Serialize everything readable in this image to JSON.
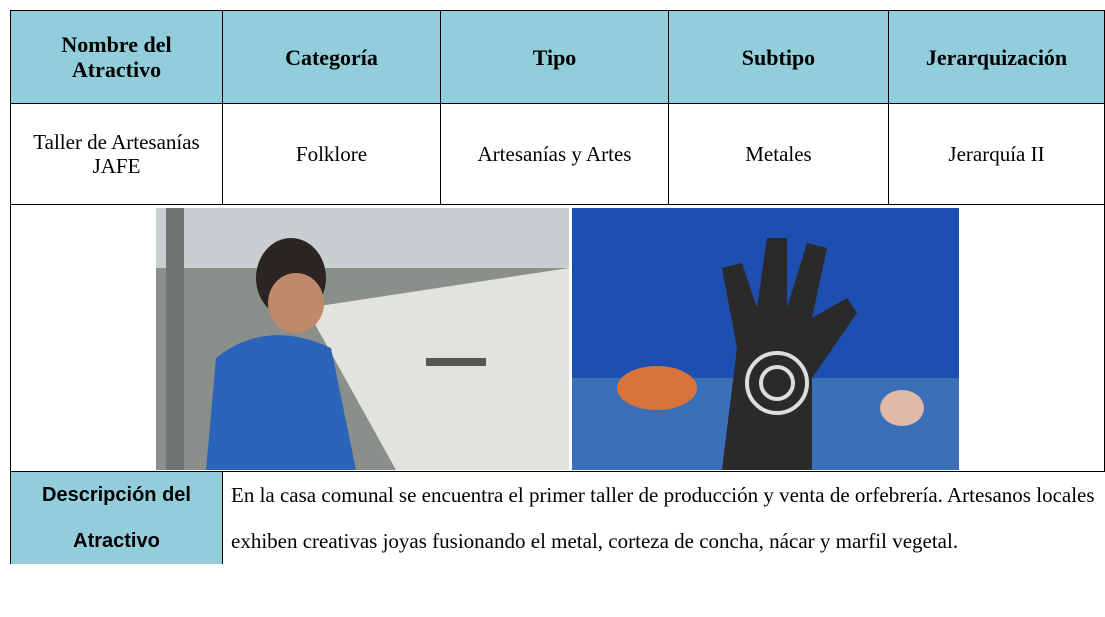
{
  "table": {
    "headers": [
      "Nombre del Atractivo",
      "Categoría",
      "Tipo",
      "Subtipo",
      "Jerarquización"
    ],
    "rows": [
      [
        "Taller de Artesanías JAFE",
        "Folklore",
        "Artesanías y Artes",
        "Metales",
        "Jerarquía II"
      ]
    ]
  },
  "description": {
    "label": "Descripción del Atractivo",
    "text": "En la casa comunal se encuentra el primer taller de producción y venta de orfebrería. Artesanos locales exhiben creativas joyas fusionando el metal, corteza de concha, nácar y marfil vegetal."
  }
}
